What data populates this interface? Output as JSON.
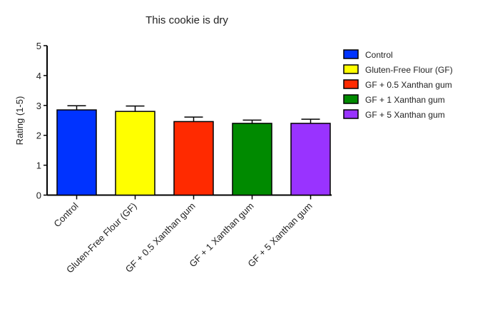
{
  "chart_data": {
    "type": "bar",
    "title": "This cookie is dry",
    "xlabel": "",
    "ylabel": "Rating (1-5)",
    "ylim": [
      0,
      5
    ],
    "yticks": [
      0,
      1,
      2,
      3,
      4,
      5
    ],
    "categories": [
      "Control",
      "Gluten-Free Flour (GF)",
      "GF + 0.5 Xanthan gum",
      "GF + 1 Xanthan gum",
      "GF + 5 Xanthan gum"
    ],
    "values": [
      2.85,
      2.8,
      2.46,
      2.4,
      2.4
    ],
    "error_upper": [
      0.14,
      0.18,
      0.15,
      0.11,
      0.14
    ],
    "colors": [
      "#0033ff",
      "#ffff00",
      "#ff2a00",
      "#008a00",
      "#9933ff"
    ],
    "legend": {
      "placement": "right",
      "entries": [
        "Control",
        "Gluten-Free Flour (GF)",
        "GF + 0.5 Xanthan gum",
        "GF + 1 Xanthan gum",
        "GF + 5 Xanthan gum"
      ]
    },
    "grid": false
  }
}
